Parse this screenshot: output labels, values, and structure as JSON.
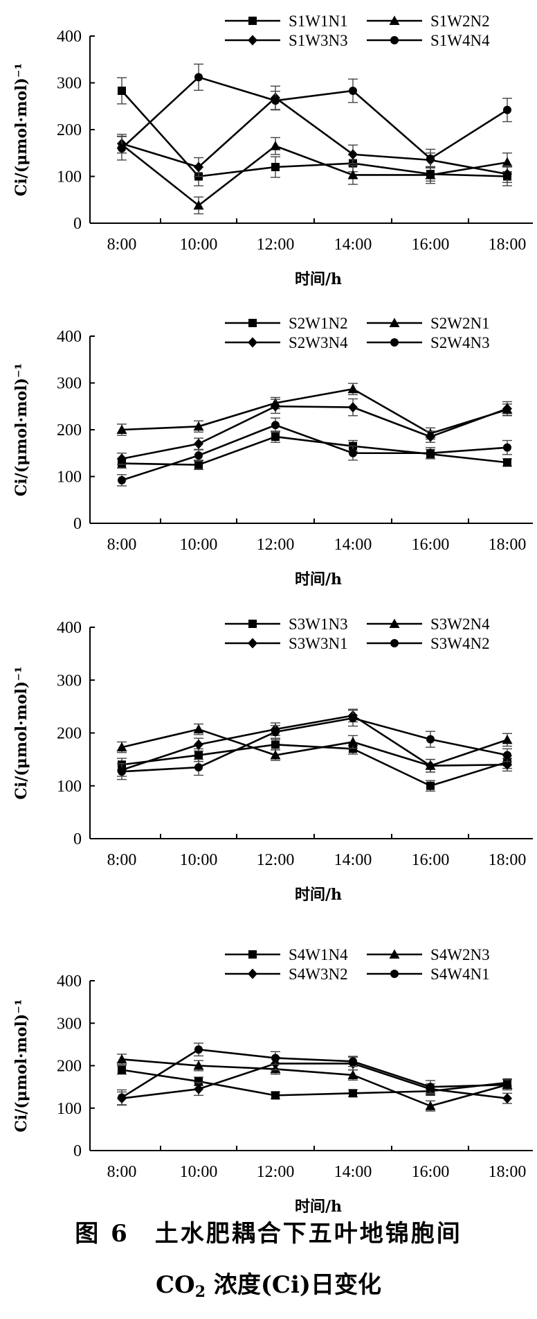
{
  "caption": {
    "line1": "图 6　土水肥耦合下五叶地锦胞间",
    "line2_prefix": "CO",
    "line2_sub": "2",
    "line2_suffix": " 浓度(Ci)日变化"
  },
  "chart_data": [
    {
      "type": "line",
      "xlabel": "时间/h",
      "ylabel": "Ci/(μmol·mol)⁻¹",
      "categories": [
        "8:00",
        "10:00",
        "12:00",
        "14:00",
        "16:00",
        "18:00"
      ],
      "ylim": [
        0,
        400
      ],
      "yticks": [
        0,
        100,
        200,
        300,
        400
      ],
      "legend_position": "top-right",
      "error_bars": true,
      "series": [
        {
          "name": "S1W1N1",
          "marker": "square",
          "values": [
            283,
            100,
            120,
            128,
            105,
            100
          ],
          "errors": [
            28,
            20,
            22,
            18,
            15,
            20
          ]
        },
        {
          "name": "S1W2N2",
          "marker": "triangle",
          "values": [
            168,
            38,
            165,
            103,
            103,
            130
          ],
          "errors": [
            18,
            18,
            18,
            20,
            18,
            20
          ]
        },
        {
          "name": "S1W3N3",
          "marker": "diamond",
          "values": [
            170,
            120,
            268,
            147,
            135,
            105
          ],
          "errors": [
            20,
            20,
            25,
            20,
            15,
            18
          ]
        },
        {
          "name": "S1W4N4",
          "marker": "circle",
          "values": [
            160,
            312,
            262,
            283,
            138,
            242
          ],
          "errors": [
            25,
            28,
            20,
            25,
            20,
            25
          ]
        }
      ]
    },
    {
      "type": "line",
      "xlabel": "时间/h",
      "ylabel": "Ci/(μmol·mol)⁻¹",
      "categories": [
        "8:00",
        "10:00",
        "12:00",
        "14:00",
        "16:00",
        "18:00"
      ],
      "ylim": [
        0,
        400
      ],
      "yticks": [
        0,
        100,
        200,
        300,
        400
      ],
      "legend_position": "top-right",
      "error_bars": true,
      "series": [
        {
          "name": "S2W1N2",
          "marker": "square",
          "values": [
            128,
            125,
            185,
            165,
            148,
            130
          ],
          "errors": [
            10,
            10,
            12,
            12,
            10,
            8
          ]
        },
        {
          "name": "S2W2N1",
          "marker": "triangle",
          "values": [
            200,
            207,
            257,
            287,
            192,
            243
          ],
          "errors": [
            12,
            12,
            12,
            12,
            12,
            12
          ]
        },
        {
          "name": "S2W3N4",
          "marker": "diamond",
          "values": [
            138,
            170,
            250,
            248,
            185,
            245
          ],
          "errors": [
            12,
            12,
            15,
            18,
            12,
            15
          ]
        },
        {
          "name": "S2W4N3",
          "marker": "circle",
          "values": [
            92,
            145,
            210,
            150,
            150,
            162
          ],
          "errors": [
            12,
            12,
            15,
            15,
            12,
            15
          ]
        }
      ]
    },
    {
      "type": "line",
      "xlabel": "时间/h",
      "ylabel": "Ci/(μmol·mol)⁻¹",
      "categories": [
        "8:00",
        "10:00",
        "12:00",
        "14:00",
        "16:00",
        "18:00"
      ],
      "ylim": [
        0,
        400
      ],
      "yticks": [
        0,
        100,
        200,
        300,
        400
      ],
      "legend_position": "top-right",
      "error_bars": true,
      "series": [
        {
          "name": "S3W1N3",
          "marker": "square",
          "values": [
            140,
            158,
            178,
            170,
            100,
            145
          ],
          "errors": [
            12,
            12,
            10,
            10,
            10,
            12
          ]
        },
        {
          "name": "S3W2N4",
          "marker": "triangle",
          "values": [
            173,
            207,
            158,
            183,
            138,
            187
          ],
          "errors": [
            10,
            10,
            10,
            12,
            12,
            12
          ]
        },
        {
          "name": "S3W3N1",
          "marker": "diamond",
          "values": [
            130,
            178,
            207,
            233,
            138,
            140
          ],
          "errors": [
            12,
            12,
            12,
            12,
            12,
            12
          ]
        },
        {
          "name": "S3W4N2",
          "marker": "circle",
          "values": [
            127,
            135,
            202,
            228,
            188,
            158
          ],
          "errors": [
            15,
            15,
            12,
            15,
            15,
            12
          ]
        }
      ]
    },
    {
      "type": "line",
      "xlabel": "时间/h",
      "ylabel": "Ci/(μmol·mol)⁻¹",
      "categories": [
        "8:00",
        "10:00",
        "12:00",
        "14:00",
        "16:00",
        "18:00"
      ],
      "ylim": [
        0,
        400
      ],
      "yticks": [
        0,
        100,
        200,
        300,
        400
      ],
      "legend_position": "top-right",
      "error_bars": true,
      "series": [
        {
          "name": "S4W1N4",
          "marker": "square",
          "values": [
            190,
            163,
            130,
            135,
            140,
            160
          ],
          "errors": [
            10,
            10,
            8,
            8,
            10,
            8
          ]
        },
        {
          "name": "S4W2N3",
          "marker": "triangle",
          "values": [
            215,
            200,
            192,
            178,
            105,
            155
          ],
          "errors": [
            12,
            12,
            12,
            12,
            12,
            12
          ]
        },
        {
          "name": "S4W3N2",
          "marker": "diamond",
          "values": [
            123,
            145,
            205,
            205,
            145,
            123
          ],
          "errors": [
            15,
            15,
            15,
            15,
            12,
            12
          ]
        },
        {
          "name": "S4W4N1",
          "marker": "circle",
          "values": [
            125,
            238,
            218,
            210,
            150,
            155
          ],
          "errors": [
            18,
            15,
            15,
            12,
            15,
            12
          ]
        }
      ]
    }
  ]
}
